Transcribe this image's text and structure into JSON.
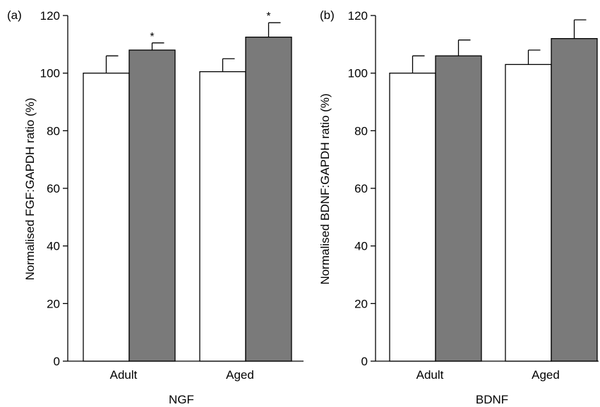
{
  "colors": {
    "control_fill": "#ffffff",
    "treated_fill": "#7a7a7a",
    "stroke": "#000000"
  },
  "chart_data": [
    {
      "type": "bar",
      "panel_label": "(a)",
      "categories": [
        "Adult",
        "Aged"
      ],
      "series": [
        {
          "fill": "control",
          "values": [
            100,
            100.5
          ],
          "errors": [
            6,
            4.5
          ],
          "significance": [
            "",
            ""
          ]
        },
        {
          "fill": "treated",
          "values": [
            108,
            112.5
          ],
          "errors": [
            2.5,
            5
          ],
          "significance": [
            "*",
            "*"
          ]
        }
      ],
      "yticks": [
        0,
        20,
        40,
        60,
        80,
        100,
        120
      ],
      "ylim": [
        0,
        120
      ],
      "ylabel": "Normalised FGF:GAPDH ratio (%)",
      "xlabel": "NGF",
      "grid": false
    },
    {
      "type": "bar",
      "panel_label": "(b)",
      "categories": [
        "Adult",
        "Aged"
      ],
      "series": [
        {
          "fill": "control",
          "values": [
            100,
            103
          ],
          "errors": [
            6,
            5
          ],
          "significance": [
            "",
            ""
          ]
        },
        {
          "fill": "treated",
          "values": [
            106,
            112
          ],
          "errors": [
            5.5,
            6.5
          ],
          "significance": [
            "",
            ""
          ]
        }
      ],
      "yticks": [
        0,
        20,
        40,
        60,
        80,
        100,
        120
      ],
      "ylim": [
        0,
        120
      ],
      "ylabel": "Normalised BDNF:GAPDH ratio (%)",
      "xlabel": "BDNF",
      "grid": false
    }
  ]
}
